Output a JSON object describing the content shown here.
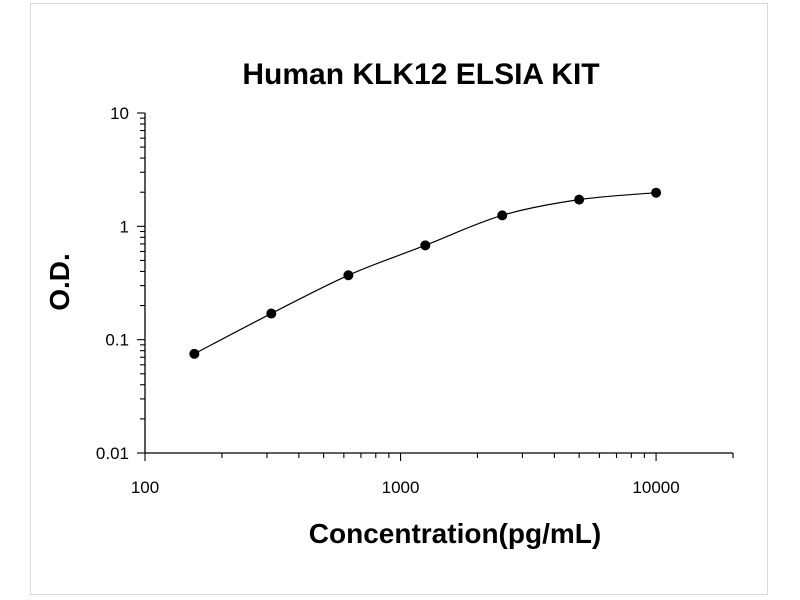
{
  "chart_data": {
    "type": "scatter",
    "title": "Human KLK12 ELSIA KIT",
    "xlabel": "Concentration(pg/mL)",
    "ylabel": "O.D.",
    "x_scale": "log",
    "y_scale": "log",
    "xlim": [
      100,
      20000
    ],
    "ylim": [
      0.01,
      10
    ],
    "x_ticks": [
      "100",
      "1000",
      "10000"
    ],
    "y_ticks": [
      "10",
      "1",
      "0.1",
      "0.01"
    ],
    "grid": false,
    "legend": "none",
    "series": [
      {
        "x": [
          156,
          312,
          625,
          1250,
          2500,
          5000,
          10000
        ],
        "y": [
          0.075,
          0.17,
          0.37,
          0.68,
          1.25,
          1.72,
          1.98
        ],
        "style": "points with smooth fitted curve"
      }
    ]
  }
}
